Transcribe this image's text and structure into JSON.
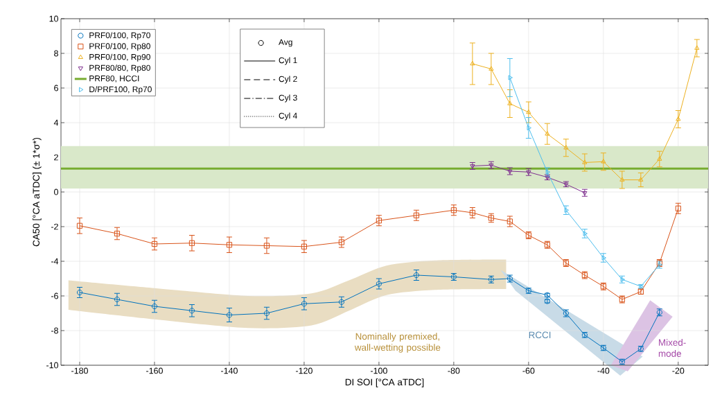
{
  "chart_data": {
    "type": "line",
    "xlabel": "DI SOI [°CA aTDC]",
    "ylabel": "CA50 [°CA aTDC] (± 1*σ*)",
    "xlim": [
      -185,
      -12
    ],
    "ylim": [
      -10,
      10
    ],
    "xticks": [
      -180,
      -160,
      -140,
      -120,
      -100,
      -80,
      -60,
      -40,
      -20
    ],
    "yticks": [
      -10,
      -8,
      -6,
      -4,
      -2,
      0,
      2,
      4,
      6,
      8,
      10
    ],
    "grid": true,
    "legend": "top left",
    "line_style": "solid",
    "series": [
      {
        "name": "PRF0/100, Rp70",
        "color": "#0072bd",
        "marker": "circle",
        "x": [
          -180,
          -170,
          -160,
          -150,
          -140,
          -130,
          -120,
          -110,
          -100,
          -90,
          -80,
          -70,
          -65,
          -60,
          -55,
          -50,
          -45,
          -40,
          -35,
          -30,
          -25
        ],
        "values": [
          -5.8,
          -6.2,
          -6.6,
          -6.85,
          -7.1,
          -7.0,
          -6.45,
          -6.35,
          -5.3,
          -4.8,
          -4.9,
          -5.05,
          -5.0,
          -5.7,
          -5.95,
          -7.0,
          -8.25,
          -9.0,
          -9.8,
          -9.05,
          -6.95
        ],
        "errors": [
          0.3,
          0.35,
          0.35,
          0.35,
          0.4,
          0.35,
          0.35,
          0.3,
          0.3,
          0.3,
          0.2,
          0.2,
          0.2,
          0.15,
          0.1,
          0.2,
          0.15,
          0.15,
          0.15,
          0.15,
          0.2
        ]
      },
      {
        "name": "PRF0/100, Rp80",
        "color": "#d95319",
        "marker": "square",
        "x": [
          -180,
          -170,
          -160,
          -150,
          -140,
          -130,
          -120,
          -110,
          -100,
          -90,
          -80,
          -75,
          -70,
          -65,
          -60,
          -55,
          -50,
          -45,
          -40,
          -35,
          -30,
          -25,
          -20
        ],
        "values": [
          -1.95,
          -2.4,
          -3.0,
          -2.95,
          -3.05,
          -3.1,
          -3.15,
          -2.9,
          -1.65,
          -1.35,
          -1.05,
          -1.2,
          -1.5,
          -1.7,
          -2.5,
          -3.05,
          -4.1,
          -4.8,
          -5.45,
          -6.2,
          -5.75,
          -4.1,
          -0.95
        ],
        "errors": [
          0.45,
          0.35,
          0.35,
          0.45,
          0.45,
          0.45,
          0.35,
          0.3,
          0.3,
          0.3,
          0.3,
          0.3,
          0.25,
          0.3,
          0.2,
          0.2,
          0.2,
          0.2,
          0.2,
          0.2,
          0.15,
          0.2,
          0.3
        ]
      },
      {
        "name": "PRF0/100, Rp90",
        "color": "#edb120",
        "marker": "triangle",
        "x": [
          -75,
          -70,
          -65,
          -60,
          -55,
          -50,
          -45,
          -40,
          -35,
          -30,
          -25,
          -20,
          -15
        ],
        "values": [
          7.4,
          7.1,
          5.1,
          4.6,
          3.35,
          2.55,
          1.7,
          1.75,
          0.7,
          0.7,
          1.9,
          4.2,
          8.3
        ],
        "errors": [
          1.2,
          0.9,
          0.8,
          0.6,
          0.6,
          0.5,
          0.5,
          0.5,
          0.5,
          0.4,
          0.45,
          0.5,
          0.5
        ]
      },
      {
        "name": "PRF80/80, Rp80",
        "color": "#7e2f8e",
        "marker": "triangle-down",
        "x": [
          -75,
          -70,
          -65,
          -60,
          -55,
          -50,
          -45
        ],
        "values": [
          1.5,
          1.55,
          1.2,
          1.15,
          0.85,
          0.45,
          -0.05
        ],
        "errors": [
          0.2,
          0.2,
          0.2,
          0.2,
          0.15,
          0.15,
          0.2
        ]
      },
      {
        "name": "D/PRF100, Rp70",
        "color": "#4dbeee",
        "marker": "triangle-right",
        "x": [
          -65,
          -60,
          -55,
          -50,
          -45,
          -40,
          -35,
          -30,
          -25
        ],
        "values": [
          6.6,
          3.7,
          1.15,
          -1.05,
          -2.4,
          -3.8,
          -5.05,
          -5.45,
          -4.2
        ],
        "errors": [
          1.1,
          0.6,
          0.25,
          0.25,
          0.25,
          0.25,
          0.2,
          0.1,
          0.2
        ]
      },
      {
        "color": "#0072bd",
        "marker": "circle",
        "x": [
          -55
        ],
        "values": [
          -6.3
        ],
        "errors": [
          0.1
        ]
      }
    ],
    "ref_lines": [
      {
        "axis": "y",
        "value": 1.35,
        "label": "PRF80, HCCI",
        "color": "#77ac30"
      }
    ],
    "bands": [
      {
        "axis": "y",
        "from": 0.2,
        "to": 2.65,
        "color": "#d9e8c9"
      }
    ],
    "annotations": [
      "Avg",
      "Cyl 1",
      "Cyl 2",
      "Cyl 3",
      "Cyl 4",
      "Nominally premixed, wall-wetting possible",
      "RCCI",
      "Mixed-mode"
    ]
  }
}
